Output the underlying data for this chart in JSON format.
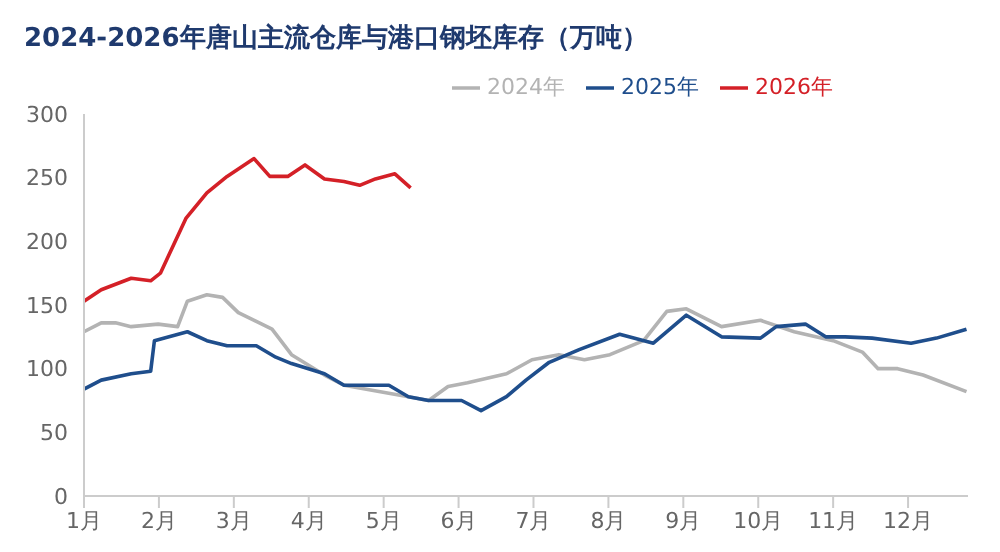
{
  "chart_data": {
    "type": "line",
    "title": "2024-2026年唐山主流仓库与港口钢坯库存（万吨）",
    "xlim": [
      1,
      12.8
    ],
    "xticks": [
      {
        "value": 1,
        "label": "1月"
      },
      {
        "value": 2,
        "label": "2月"
      },
      {
        "value": 3,
        "label": "3月"
      },
      {
        "value": 4,
        "label": "4月"
      },
      {
        "value": 5,
        "label": "5月"
      },
      {
        "value": 6,
        "label": "6月"
      },
      {
        "value": 7,
        "label": "7月"
      },
      {
        "value": 8,
        "label": "8月"
      },
      {
        "value": 9,
        "label": "9月"
      },
      {
        "value": 10,
        "label": "10月"
      },
      {
        "value": 11,
        "label": "11月"
      },
      {
        "value": 12,
        "label": "12月"
      }
    ],
    "ylim": [
      0,
      300
    ],
    "yticks": [
      0,
      50,
      100,
      150,
      200,
      250,
      300
    ],
    "grid": false,
    "legend": "top",
    "marker": "none",
    "line_style": "solid",
    "series": [
      {
        "name": "2024年",
        "color": "#b3b3b3",
        "x": [
          1,
          1.23,
          1.42,
          1.63,
          1.99,
          2.25,
          2.38,
          2.64,
          2.85,
          3.06,
          3.51,
          3.77,
          4.21,
          4.47,
          5.33,
          5.6,
          5.86,
          6.12,
          6.64,
          6.98,
          7.34,
          7.68,
          8.02,
          8.47,
          8.78,
          9.04,
          9.51,
          10.03,
          10.48,
          11,
          11.39,
          11.6,
          11.86,
          12.2,
          12.78
        ],
        "values": [
          129,
          136,
          136,
          133,
          135,
          133,
          153,
          158,
          156,
          144,
          131,
          111,
          95,
          87,
          78,
          75,
          86,
          89,
          96,
          107,
          111,
          107,
          111,
          122,
          145,
          147,
          133,
          138,
          129,
          122,
          113,
          100,
          100,
          95,
          82
        ]
      },
      {
        "name": "2025年",
        "color": "#1f4e8c",
        "x": [
          1,
          1.23,
          1.63,
          1.89,
          1.94,
          2.38,
          2.64,
          2.91,
          3.3,
          3.56,
          3.77,
          4.21,
          4.47,
          5.07,
          5.33,
          5.6,
          6.04,
          6.3,
          6.64,
          6.9,
          7.21,
          7.61,
          8.15,
          8.6,
          9.04,
          9.51,
          10.03,
          10.24,
          10.63,
          10.9,
          11.16,
          11.52,
          12.04,
          12.38,
          12.78
        ],
        "values": [
          84,
          91,
          96,
          98,
          122,
          129,
          122,
          118,
          118,
          109,
          104,
          96,
          87,
          87,
          78,
          75,
          75,
          67,
          78,
          91,
          105,
          115,
          127,
          120,
          142,
          125,
          124,
          133,
          135,
          125,
          125,
          124,
          120,
          124,
          131
        ]
      },
      {
        "name": "2026年",
        "color": "#d42027",
        "x": [
          1,
          1.23,
          1.63,
          1.89,
          2.02,
          2.36,
          2.64,
          2.91,
          3.27,
          3.48,
          3.72,
          3.95,
          4.21,
          4.47,
          4.68,
          4.89,
          5.15,
          5.36
        ],
        "values": [
          153,
          162,
          171,
          169,
          175,
          218,
          238,
          251,
          265,
          251,
          251,
          260,
          249,
          247,
          244,
          249,
          253,
          242
        ]
      }
    ]
  }
}
